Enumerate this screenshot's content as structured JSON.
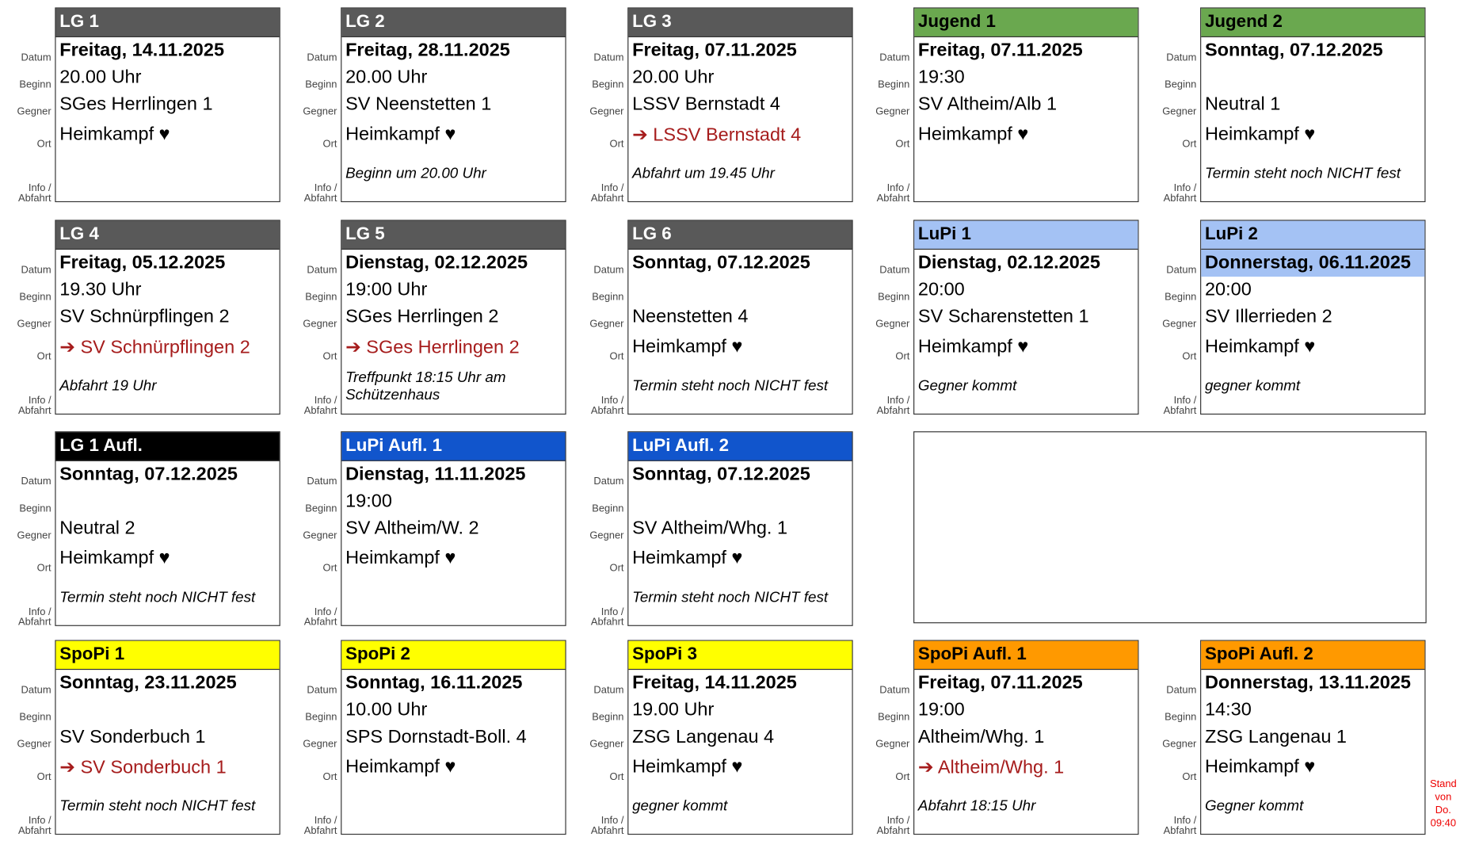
{
  "labels": [
    "Datum",
    "Beginn",
    "Gegner",
    "Ort",
    "Info /\nAbfahrt"
  ],
  "cards": [
    {
      "title": "LG 1",
      "header_color": "#595959",
      "header_text_color": "#ffffff",
      "datum": "Freitag, 14.11.2025",
      "beginn": "20.00 Uhr",
      "gegner": "SGes Herrlingen 1",
      "ort": "Heimkampf ♥",
      "info": null
    },
    {
      "title": "LG 2",
      "header_color": "#595959",
      "header_text_color": "#ffffff",
      "datum": "Freitag, 28.11.2025",
      "beginn": "20.00 Uhr",
      "gegner": "SV Neenstetten 1",
      "ort": "Heimkampf ♥",
      "info": "Beginn um 20.00 Uhr"
    },
    {
      "title": "LG 3",
      "header_color": "#595959",
      "header_text_color": "#ffffff",
      "datum": "Freitag, 07.11.2025",
      "beginn": "20.00 Uhr",
      "gegner": "LSSV Bernstadt 4",
      "ort": "➔ LSSV Bernstadt 4",
      "info": "Abfahrt um 19.45 Uhr"
    },
    {
      "title": "Jugend 1",
      "header_color": "#6aa84f",
      "header_text_color": "#000000",
      "datum": "Freitag, 07.11.2025",
      "beginn": "19:30",
      "gegner": "SV Altheim/Alb 1",
      "ort": "Heimkampf ♥",
      "info": null
    },
    {
      "title": "Jugend 2",
      "header_color": "#6aa84f",
      "header_text_color": "#000000",
      "datum": "Sonntag, 07.12.2025",
      "beginn": null,
      "gegner": "Neutral 1",
      "ort": "Heimkampf ♥",
      "info": "Termin steht noch NICHT fest"
    },
    {
      "title": "LG 4",
      "header_color": "#595959",
      "header_text_color": "#ffffff",
      "datum": "Freitag, 05.12.2025",
      "beginn": "19.30 Uhr",
      "gegner": "SV Schnürpflingen 2",
      "ort": "➔ SV Schnürpflingen 2",
      "info": "Abfahrt 19 Uhr"
    },
    {
      "title": "LG 5",
      "header_color": "#595959",
      "header_text_color": "#ffffff",
      "datum": "Dienstag, 02.12.2025",
      "beginn": "19:00 Uhr",
      "gegner": "SGes Herrlingen 2",
      "ort": "➔ SGes Herrlingen 2",
      "info": "Treffpunkt 18:15 Uhr am Schützenhaus"
    },
    {
      "title": "LG 6",
      "header_color": "#595959",
      "header_text_color": "#ffffff",
      "datum": "Sonntag, 07.12.2025",
      "beginn": null,
      "gegner": "Neenstetten 4",
      "ort": "Heimkampf ♥",
      "info": "Termin steht noch NICHT fest"
    },
    {
      "title": "LuPi 1",
      "header_color": "#a4c2f4",
      "header_text_color": "#000000",
      "datum": "Dienstag, 02.12.2025",
      "beginn": "20:00",
      "gegner": "SV Scharenstetten 1",
      "ort": "Heimkampf ♥",
      "info": "Gegner kommt"
    },
    {
      "title": "LuPi 2",
      "header_color": "#a4c2f4",
      "header_text_color": "#000000",
      "datum_color": "#a4c2f4",
      "datum": "Donnerstag, 06.11.2025",
      "beginn": "20:00",
      "gegner": "SV Illerrieden 2",
      "ort": "Heimkampf ♥",
      "info": "gegner kommt"
    },
    {
      "title": "LG 1 Aufl.",
      "header_color": "#000000",
      "header_text_color": "#ffffff",
      "datum": "Sonntag, 07.12.2025",
      "beginn": null,
      "gegner": "Neutral 2",
      "ort": "Heimkampf ♥",
      "info": "Termin steht noch NICHT fest"
    },
    {
      "title": "LuPi Aufl. 1",
      "header_color": "#1155cc",
      "header_text_color": "#ffffff",
      "datum": "Dienstag, 11.11.2025",
      "beginn": "19:00",
      "gegner": "SV Altheim/W. 2",
      "ort": "Heimkampf ♥",
      "info": null
    },
    {
      "title": "LuPi Aufl. 2",
      "header_color": "#1155cc",
      "header_text_color": "#ffffff",
      "datum": "Sonntag, 07.12.2025",
      "beginn": null,
      "gegner": "SV Altheim/Whg. 1",
      "ort": "Heimkampf ♥",
      "info": "Termin steht noch NICHT fest"
    },
    {
      "title": "SpoPi 1",
      "header_color": "#ffff00",
      "header_text_color": "#000000",
      "datum": "Sonntag, 23.11.2025",
      "beginn": null,
      "gegner": "SV Sonderbuch 1",
      "ort": "➔ SV Sonderbuch 1",
      "info": "Termin steht noch NICHT fest"
    },
    {
      "title": "SpoPi 2",
      "header_color": "#ffff00",
      "header_text_color": "#000000",
      "datum": "Sonntag, 16.11.2025",
      "beginn": "10.00 Uhr",
      "gegner": "SPS Dornstadt-Boll. 4",
      "ort": "Heimkampf ♥",
      "info": null
    },
    {
      "title": "SpoPi 3",
      "header_color": "#ffff00",
      "header_text_color": "#000000",
      "datum": "Freitag, 14.11.2025",
      "beginn": "19.00 Uhr",
      "gegner": "ZSG Langenau 4",
      "ort": "Heimkampf ♥",
      "info": "gegner kommt"
    },
    {
      "title": "SpoPi Aufl. 1",
      "header_color": "#ff9900",
      "header_text_color": "#000000",
      "datum": "Freitag, 07.11.2025",
      "beginn": "19:00",
      "gegner": "Altheim/Whg. 1",
      "ort": "➔ Altheim/Whg. 1",
      "info": "Abfahrt 18:15 Uhr"
    },
    {
      "title": "SpoPi Aufl. 2",
      "header_color": "#ff9900",
      "header_text_color": "#000000",
      "datum": "Donnerstag, 13.11.2025",
      "beginn": "14:30",
      "gegner": "ZSG Langenau 1",
      "ort": "Heimkampf ♥",
      "info": "Gegner kommt"
    }
  ],
  "stand": [
    "Stand",
    "von",
    "Do.",
    "09:40"
  ]
}
